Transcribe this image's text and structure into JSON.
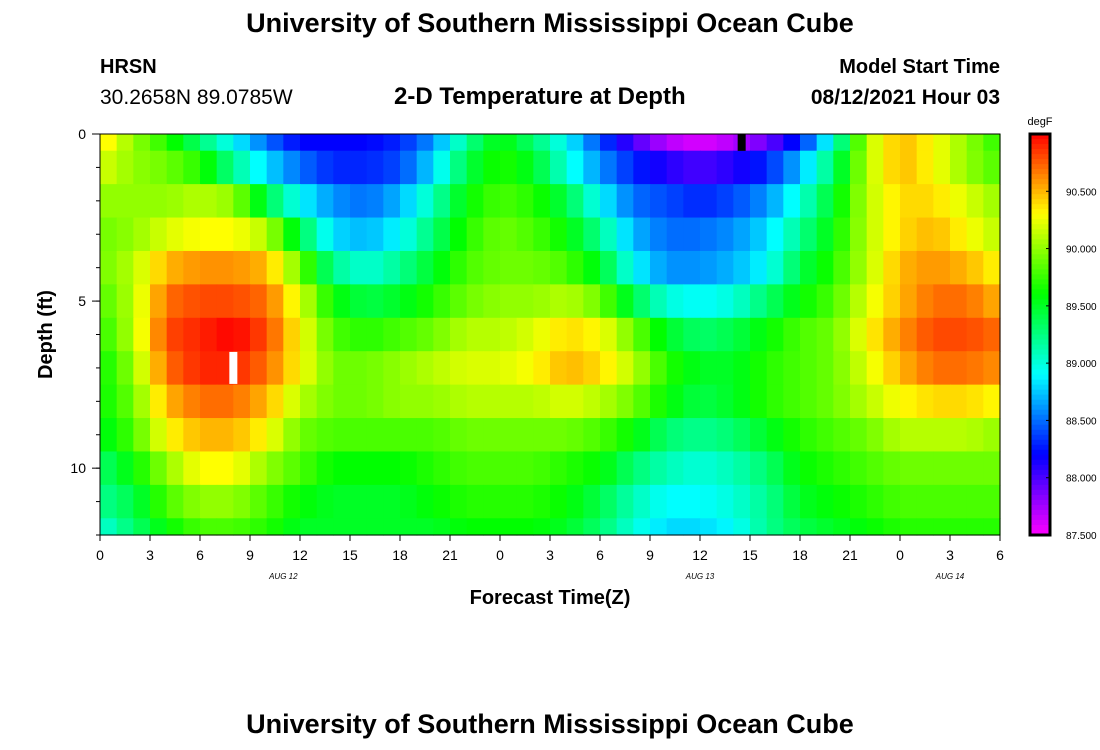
{
  "page_title": "University of Southern Mississippi Ocean Cube",
  "footer_title": "University of Southern Mississippi Ocean Cube",
  "station": {
    "name": "HRSN",
    "coordinates": "30.2658N  89.0785W"
  },
  "model_start": {
    "label": "Model Start Time",
    "value": "08/12/2021 Hour 03"
  },
  "chart_data": {
    "type": "heatmap",
    "title": "2-D Temperature at Depth",
    "xlabel": "Forecast Time(Z)",
    "ylabel": "Depth (ft)",
    "x_range_hours": [
      0,
      54
    ],
    "x_ticks": [
      "0",
      "3",
      "6",
      "9",
      "12",
      "15",
      "18",
      "21",
      "0",
      "3",
      "6",
      "9",
      "12",
      "15",
      "18",
      "21",
      "0",
      "3",
      "6"
    ],
    "date_labels": [
      {
        "text": "AUG 12",
        "hour": 11
      },
      {
        "text": "AUG 13",
        "hour": 36
      },
      {
        "text": "AUG 14",
        "hour": 51
      }
    ],
    "y_range_ft": [
      0,
      12
    ],
    "y_ticks": [
      0,
      5,
      10
    ],
    "y_minor_tick_step": 1,
    "units": "degF",
    "colorbar_ticks": [
      "90.500",
      "90.000",
      "89.500",
      "89.000",
      "88.500",
      "88.000",
      "87.500"
    ],
    "colorbar_min": 87.5,
    "colorbar_max": 91.0,
    "temperature_field": {
      "depth_levels_ft": [
        0,
        1,
        2,
        3,
        4,
        5,
        6,
        7,
        8,
        9,
        10,
        11,
        12
      ],
      "time_knots_hours": [
        0,
        2,
        4,
        6,
        8,
        10,
        12,
        14,
        16,
        18,
        20,
        22,
        24,
        26,
        28,
        30,
        32,
        34,
        36,
        38,
        40,
        42,
        44,
        46,
        48,
        50,
        52,
        54
      ],
      "rows_degF": [
        [
          90.4,
          90.0,
          89.7,
          89.3,
          88.9,
          88.5,
          88.2,
          88.2,
          88.2,
          88.3,
          88.6,
          89.2,
          89.6,
          89.3,
          88.9,
          88.4,
          88.0,
          87.7,
          87.6,
          87.7,
          87.9,
          88.3,
          89.0,
          90.1,
          90.5,
          90.3,
          90.0,
          89.7
        ],
        [
          90.2,
          90.0,
          89.9,
          89.7,
          89.2,
          88.8,
          88.5,
          88.3,
          88.3,
          88.4,
          88.8,
          89.4,
          89.7,
          89.5,
          89.0,
          88.6,
          88.3,
          88.1,
          88.0,
          88.1,
          88.3,
          88.7,
          89.3,
          90.1,
          90.5,
          90.3,
          90.0,
          89.8
        ],
        [
          90.0,
          90.0,
          90.0,
          90.1,
          90.0,
          89.4,
          88.9,
          88.6,
          88.5,
          88.7,
          89.1,
          89.6,
          89.8,
          89.7,
          89.4,
          88.9,
          88.5,
          88.4,
          88.3,
          88.4,
          88.6,
          89.0,
          89.5,
          90.1,
          90.4,
          90.4,
          90.2,
          90.0
        ],
        [
          89.9,
          90.0,
          90.2,
          90.3,
          90.3,
          90.1,
          89.4,
          88.8,
          88.7,
          88.9,
          89.3,
          89.7,
          89.9,
          89.8,
          89.6,
          89.2,
          88.7,
          88.5,
          88.5,
          88.6,
          88.8,
          89.2,
          89.6,
          90.1,
          90.4,
          90.5,
          90.3,
          90.1
        ],
        [
          89.9,
          90.1,
          90.5,
          90.6,
          90.6,
          90.5,
          89.9,
          89.2,
          89.0,
          89.2,
          89.5,
          89.8,
          89.9,
          89.9,
          89.8,
          89.5,
          88.9,
          88.6,
          88.6,
          88.7,
          88.9,
          89.4,
          89.7,
          90.1,
          90.5,
          90.6,
          90.5,
          90.3
        ],
        [
          89.8,
          90.1,
          90.7,
          90.8,
          90.8,
          90.7,
          90.2,
          89.6,
          89.4,
          89.5,
          89.7,
          89.9,
          90.0,
          90.0,
          90.1,
          89.9,
          89.4,
          89.0,
          88.9,
          89.0,
          89.3,
          89.6,
          89.8,
          90.2,
          90.5,
          90.7,
          90.7,
          90.5
        ],
        [
          89.7,
          90.1,
          90.8,
          90.9,
          91.0,
          90.8,
          90.3,
          89.8,
          89.7,
          89.8,
          89.9,
          90.1,
          90.1,
          90.2,
          90.4,
          90.3,
          89.9,
          89.5,
          89.3,
          89.4,
          89.6,
          89.8,
          89.9,
          90.3,
          90.6,
          90.8,
          90.8,
          90.7
        ],
        [
          89.6,
          90.0,
          90.7,
          90.9,
          90.9,
          90.7,
          90.3,
          89.9,
          89.9,
          90.0,
          90.1,
          90.2,
          90.2,
          90.3,
          90.5,
          90.4,
          90.1,
          89.7,
          89.5,
          89.5,
          89.7,
          89.8,
          89.9,
          90.2,
          90.5,
          90.7,
          90.7,
          90.6
        ],
        [
          89.6,
          89.9,
          90.5,
          90.7,
          90.7,
          90.5,
          90.1,
          89.9,
          89.9,
          90.0,
          90.0,
          90.1,
          90.1,
          90.1,
          90.2,
          90.1,
          89.9,
          89.6,
          89.4,
          89.5,
          89.7,
          89.8,
          89.9,
          90.1,
          90.3,
          90.4,
          90.4,
          90.3
        ],
        [
          89.5,
          89.8,
          90.3,
          90.5,
          90.5,
          90.3,
          89.9,
          89.8,
          89.8,
          89.8,
          89.8,
          89.9,
          89.9,
          89.9,
          89.9,
          89.8,
          89.6,
          89.3,
          89.2,
          89.3,
          89.5,
          89.7,
          89.8,
          89.9,
          90.1,
          90.1,
          90.1,
          90.0
        ],
        [
          89.3,
          89.6,
          90.0,
          90.3,
          90.3,
          90.0,
          89.8,
          89.6,
          89.6,
          89.6,
          89.7,
          89.8,
          89.8,
          89.8,
          89.7,
          89.6,
          89.3,
          89.1,
          89.0,
          89.1,
          89.3,
          89.6,
          89.7,
          89.8,
          89.9,
          89.9,
          89.9,
          89.9
        ],
        [
          89.2,
          89.4,
          89.8,
          90.0,
          90.0,
          89.8,
          89.6,
          89.5,
          89.5,
          89.5,
          89.6,
          89.7,
          89.7,
          89.7,
          89.6,
          89.4,
          89.1,
          88.9,
          88.9,
          89.0,
          89.2,
          89.5,
          89.6,
          89.7,
          89.8,
          89.8,
          89.8,
          89.8
        ],
        [
          89.0,
          89.3,
          89.6,
          89.8,
          89.8,
          89.7,
          89.5,
          89.5,
          89.5,
          89.5,
          89.5,
          89.6,
          89.6,
          89.6,
          89.5,
          89.3,
          89.0,
          88.8,
          88.8,
          88.9,
          89.2,
          89.4,
          89.5,
          89.6,
          89.7,
          89.7,
          89.7,
          89.7
        ]
      ]
    },
    "markers": [
      {
        "kind": "max",
        "hour": 8,
        "depth_ft": 7.0,
        "color": "#ffffff"
      },
      {
        "kind": "min",
        "hour": 38.5,
        "depth_ft": 0.25,
        "color": "#000000"
      }
    ]
  }
}
